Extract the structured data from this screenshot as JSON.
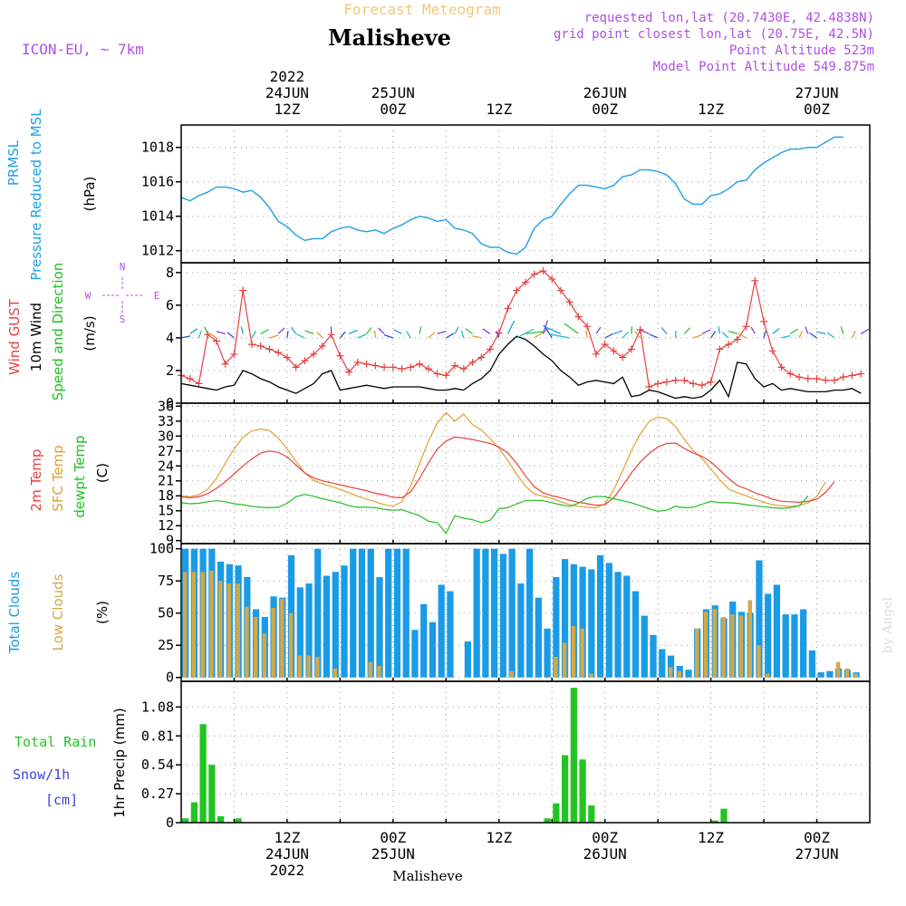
{
  "header": {
    "product": "Forecast Meteogram",
    "location": "Malisheve",
    "model": "ICON-EU, ~ 7km",
    "requested": "requested lon,lat (20.7430E, 42.4838N)",
    "gridpoint": "grid point closest lon,lat (20.75E, 42.5N)",
    "altitude": "Point Altitude 523m",
    "model_altitude": "Model Point Altitude 549.875m",
    "credit": "by Angel",
    "footer_location": "Malisheve"
  },
  "colors": {
    "pressure": "#1ea0e6",
    "gust": "#e84040",
    "wind": "#000000",
    "temp2m": "#e84040",
    "sfc_temp": "#e0a030",
    "dewpoint": "#20c020",
    "total_clouds": "#1a9be6",
    "low_clouds": "#d4a848",
    "rain": "#22c422",
    "snow": "#4040e0",
    "purple": "#b050e0"
  },
  "time_axis": {
    "start_hour": 0,
    "end_hour": 78,
    "top_labels": [
      {
        "h": 12,
        "lines": [
          "2022",
          "24JUN",
          "12Z"
        ]
      },
      {
        "h": 24,
        "lines": [
          "25JUN",
          "00Z"
        ]
      },
      {
        "h": 36,
        "lines": [
          "12Z"
        ]
      },
      {
        "h": 48,
        "lines": [
          "26JUN",
          "00Z"
        ]
      },
      {
        "h": 60,
        "lines": [
          "12Z"
        ]
      },
      {
        "h": 72,
        "lines": [
          "27JUN",
          "00Z"
        ]
      }
    ],
    "bottom_labels": [
      {
        "h": 12,
        "lines": [
          "12Z",
          "24JUN",
          "2022"
        ]
      },
      {
        "h": 24,
        "lines": [
          "00Z",
          "25JUN"
        ]
      },
      {
        "h": 36,
        "lines": [
          "12Z"
        ]
      },
      {
        "h": 48,
        "lines": [
          "00Z",
          "26JUN"
        ]
      },
      {
        "h": 60,
        "lines": [
          "12Z"
        ]
      },
      {
        "h": 72,
        "lines": [
          "00Z",
          "27JUN"
        ]
      }
    ]
  },
  "chart_data": [
    {
      "type": "line",
      "id": "pressure",
      "label_lines": [
        "PRMSL",
        "Pressure Reduced to MSL"
      ],
      "unit": "(hPa)",
      "ylim": [
        1011.3,
        1019.3
      ],
      "yticks": [
        1012,
        1014,
        1016,
        1018
      ],
      "series": [
        {
          "values": [
            1015.1,
            1014.9,
            1015.2,
            1015.4,
            1015.7,
            1015.7,
            1015.6,
            1015.4,
            1015.5,
            1015.1,
            1014.5,
            1013.7,
            1013.4,
            1012.9,
            1012.6,
            1012.7,
            1012.7,
            1013.1,
            1013.3,
            1013.4,
            1013.2,
            1013.1,
            1013.2,
            1013.0,
            1013.3,
            1013.5,
            1013.8,
            1014.0,
            1013.9,
            1013.7,
            1013.8,
            1013.3,
            1013.2,
            1013.0,
            1012.4,
            1012.2,
            1012.2,
            1011.9,
            1011.8,
            1012.2,
            1013.3,
            1013.8,
            1014.0,
            1014.7,
            1015.3,
            1015.8,
            1015.8,
            1015.7,
            1015.6,
            1015.8,
            1016.3,
            1016.4,
            1016.7,
            1016.7,
            1016.6,
            1016.4,
            1015.9,
            1015.0,
            1014.7,
            1014.7,
            1015.2,
            1015.3,
            1015.6,
            1016.0,
            1016.1,
            1016.7,
            1017.1,
            1017.4,
            1017.7,
            1017.9,
            1017.9,
            1018.0,
            1018.0,
            1018.3,
            1018.6,
            1018.6
          ]
        }
      ]
    },
    {
      "type": "line",
      "id": "wind",
      "label_lines": [
        "Wind GUST",
        "10m Wind",
        "Speed and Direction"
      ],
      "unit": "(m/s)",
      "compass": {
        "n": "N",
        "s": "S",
        "w": "W",
        "e": "E"
      },
      "ylim": [
        0,
        8.6
      ],
      "yticks": [
        0,
        2,
        4,
        6,
        8
      ],
      "series": [
        {
          "name": "gust",
          "values": [
            1.7,
            1.5,
            1.2,
            4.2,
            3.8,
            2.4,
            3.0,
            6.9,
            3.6,
            3.5,
            3.3,
            3.1,
            2.8,
            2.2,
            2.6,
            3.0,
            3.5,
            4.2,
            2.9,
            1.9,
            2.5,
            2.4,
            2.3,
            2.2,
            2.2,
            2.1,
            2.2,
            2.4,
            2.1,
            1.8,
            1.7,
            2.3,
            2.1,
            2.5,
            2.8,
            3.3,
            4.3,
            5.8,
            6.9,
            7.4,
            7.9,
            8.1,
            7.6,
            6.9,
            6.2,
            5.3,
            4.7,
            3.0,
            3.6,
            3.2,
            2.8,
            3.3,
            4.5,
            1.0,
            1.2,
            1.3,
            1.4,
            1.4,
            1.2,
            1.1,
            1.3,
            3.3,
            3.6,
            3.9,
            4.7,
            7.5,
            5.0,
            3.2,
            2.2,
            1.8,
            1.6,
            1.5,
            1.5,
            1.4,
            1.4,
            1.6,
            1.7,
            1.8
          ]
        },
        {
          "name": "wind",
          "values": [
            1.2,
            1.1,
            1.0,
            0.9,
            0.8,
            1.0,
            1.1,
            2.0,
            1.8,
            1.5,
            1.3,
            1.0,
            0.8,
            0.6,
            0.9,
            1.2,
            1.8,
            2.0,
            0.8,
            0.9,
            1.0,
            1.1,
            1.0,
            0.9,
            1.0,
            1.0,
            1.0,
            1.0,
            0.9,
            0.8,
            0.8,
            0.9,
            0.8,
            1.2,
            1.5,
            2.0,
            3.0,
            3.6,
            4.1,
            3.9,
            3.5,
            3.0,
            2.6,
            2.0,
            1.6,
            1.1,
            1.3,
            1.4,
            1.3,
            1.2,
            1.6,
            0.4,
            0.5,
            0.8,
            0.7,
            0.5,
            0.3,
            0.4,
            0.3,
            0.4,
            0.8,
            1.4,
            0.4,
            2.5,
            2.4,
            1.5,
            1.0,
            1.2,
            0.8,
            0.9,
            0.8,
            0.7,
            0.7,
            0.7,
            0.8,
            0.8,
            0.9,
            0.6
          ]
        }
      ]
    },
    {
      "type": "line",
      "id": "temperature",
      "label_lines": [
        "2m Temp",
        "SFC Temp",
        "dewpt Temp"
      ],
      "unit": "(C)",
      "ylim": [
        8.4,
        36.6
      ],
      "yticks": [
        9,
        12,
        15,
        18,
        21,
        24,
        27,
        30,
        33,
        36
      ],
      "series": [
        {
          "name": "2m Temp",
          "values": [
            17.8,
            17.6,
            17.8,
            18.4,
            19.5,
            20.8,
            22.4,
            24.0,
            25.4,
            26.6,
            27.0,
            26.7,
            25.8,
            24.2,
            22.6,
            21.6,
            21.0,
            20.6,
            20.2,
            19.8,
            19.4,
            19.0,
            18.5,
            18.2,
            17.7,
            17.6,
            18.8,
            21.5,
            24.6,
            27.4,
            29.0,
            29.8,
            29.6,
            29.3,
            28.9,
            28.5,
            27.8,
            26.6,
            24.5,
            22.0,
            19.8,
            18.6,
            18.0,
            17.6,
            17.1,
            16.7,
            16.4,
            16.1,
            16.2,
            17.6,
            20.0,
            22.6,
            24.8,
            26.5,
            27.8,
            28.5,
            28.6,
            27.5,
            26.6,
            25.9,
            24.8,
            23.2,
            21.5,
            20.1,
            19.4,
            18.6,
            18.0,
            17.3,
            16.9,
            16.8,
            16.7,
            16.9,
            17.3,
            18.7,
            20.8
          ]
        },
        {
          "name": "SFC Temp",
          "values": [
            18.0,
            17.8,
            18.2,
            19.3,
            21.5,
            24.6,
            27.4,
            29.8,
            31.0,
            31.4,
            31.1,
            29.6,
            27.4,
            24.9,
            22.6,
            21.1,
            20.4,
            19.9,
            19.3,
            18.6,
            17.9,
            17.3,
            16.8,
            16.2,
            15.9,
            16.8,
            20.0,
            24.5,
            28.9,
            32.6,
            34.7,
            33.0,
            34.4,
            32.3,
            31.2,
            29.5,
            27.5,
            25.1,
            22.3,
            19.9,
            18.4,
            17.9,
            17.5,
            16.8,
            16.2,
            15.9,
            15.7,
            15.6,
            16.4,
            19.2,
            23.0,
            27.1,
            30.4,
            32.9,
            33.8,
            33.5,
            31.9,
            29.3,
            27.1,
            25.5,
            23.4,
            21.2,
            19.4,
            18.6,
            18.0,
            17.3,
            16.7,
            16.2,
            16.0,
            15.9,
            16.0,
            16.6,
            17.9,
            20.8
          ]
        },
        {
          "name": "dewpt Temp",
          "values": [
            16.6,
            16.4,
            16.5,
            16.8,
            17.0,
            16.8,
            16.4,
            16.2,
            15.9,
            15.7,
            15.6,
            15.7,
            16.5,
            17.8,
            18.3,
            17.9,
            17.4,
            17.0,
            16.6,
            16.0,
            15.7,
            15.7,
            15.6,
            15.3,
            15.1,
            15.2,
            14.6,
            14.0,
            12.9,
            12.6,
            10.5,
            14.0,
            13.5,
            13.2,
            12.6,
            13.1,
            15.4,
            15.6,
            16.4,
            17.0,
            17.1,
            17.0,
            16.6,
            16.2,
            15.9,
            16.5,
            17.5,
            17.9,
            17.8,
            17.4,
            17.0,
            16.6,
            16.0,
            15.4,
            14.9,
            15.1,
            15.9,
            15.6,
            15.7,
            16.3,
            16.9,
            16.6,
            16.6,
            16.5,
            16.2,
            16.0,
            15.8,
            15.6,
            15.5,
            15.6,
            16.0,
            17.9
          ]
        }
      ]
    },
    {
      "type": "bar",
      "id": "clouds",
      "label_lines": [
        "Total Clouds",
        "Low Clouds"
      ],
      "unit": "(%)",
      "ylim": [
        -3,
        104
      ],
      "yticks": [
        0,
        25,
        50,
        75,
        100
      ],
      "series": [
        {
          "name": "Total Clouds",
          "values": [
            100,
            100,
            100,
            100,
            90,
            88,
            87,
            78,
            53,
            47,
            63,
            62,
            95,
            70,
            73,
            100,
            79,
            82,
            87,
            100,
            100,
            100,
            78,
            100,
            100,
            100,
            37,
            57,
            43,
            72,
            67,
            0,
            28,
            100,
            100,
            100,
            96,
            100,
            73,
            100,
            62,
            38,
            78,
            92,
            88,
            86,
            84,
            95,
            89,
            82,
            79,
            67,
            48,
            33,
            22,
            17,
            9,
            6,
            38,
            53,
            56,
            46,
            59,
            51,
            50,
            91,
            65,
            72,
            49,
            49,
            53,
            21,
            4,
            5,
            7,
            6,
            4,
            0
          ]
        },
        {
          "name": "Low Clouds",
          "values": [
            82,
            82,
            82,
            83,
            75,
            73,
            73,
            55,
            47,
            34,
            54,
            61,
            50,
            17,
            17,
            16,
            0,
            7,
            0,
            0,
            0,
            12,
            9,
            0,
            0,
            0,
            0,
            0,
            0,
            0,
            0,
            0,
            0,
            0,
            0,
            0,
            0,
            5,
            0,
            0,
            0,
            0,
            16,
            27,
            40,
            38,
            3,
            0,
            0,
            0,
            0,
            0,
            0,
            0,
            0,
            8,
            5,
            0,
            38,
            51,
            53,
            47,
            49,
            48,
            60,
            25,
            3,
            0,
            0,
            0,
            0,
            0,
            0,
            0,
            12,
            7,
            3,
            0
          ]
        }
      ]
    },
    {
      "type": "bar",
      "id": "precip",
      "label_lines": [
        "Total Rain",
        "Snow/1h",
        "[cm]"
      ],
      "unit": "1hr Precip (mm)",
      "ylim": [
        0,
        1.32
      ],
      "yticks": [
        0,
        0.27,
        0.54,
        0.81,
        1.08
      ],
      "ytick_labels": [
        "0",
        "0.27",
        "0.54",
        "0.81",
        "1.08"
      ],
      "series": [
        {
          "name": "Total Rain",
          "values": [
            0.04,
            0.19,
            0.92,
            0.54,
            0.06,
            0,
            0.04,
            0,
            0,
            0,
            0,
            0,
            0,
            0,
            0,
            0,
            0,
            0,
            0,
            0,
            0,
            0,
            0,
            0,
            0,
            0,
            0,
            0,
            0,
            0,
            0,
            0,
            0,
            0,
            0,
            0,
            0,
            0,
            0,
            0,
            0,
            0.04,
            0.18,
            0.63,
            1.26,
            0.59,
            0.16,
            0,
            0,
            0,
            0,
            0,
            0,
            0,
            0,
            0,
            0,
            0,
            0,
            0,
            0.02,
            0.13,
            0,
            0,
            0,
            0,
            0,
            0,
            0,
            0,
            0,
            0,
            0,
            0,
            0,
            0,
            0,
            0
          ]
        }
      ]
    }
  ]
}
